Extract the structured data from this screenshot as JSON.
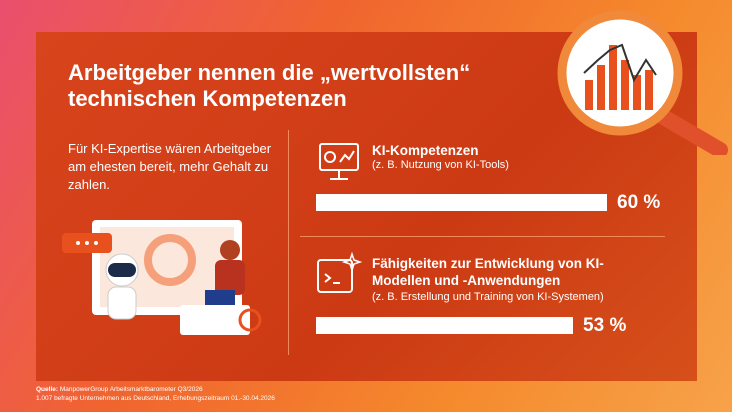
{
  "title": "Arbeitgeber nennen die „wertvollsten“ technischen Kompetenzen",
  "intro": "Für KI-Expertise wären Arbeitgeber am ehesten bereit, mehr Gehalt zu zahlen.",
  "items": [
    {
      "title": "KI-Kompetenzen",
      "subtitle": "(z. B. Nutzung von KI-Tools)",
      "value": 60,
      "value_label": "60 %"
    },
    {
      "title": "Fähigkeiten zur Entwicklung von KI-Modellen und -Anwendungen",
      "subtitle": "(z. B. Erstellung und Training von KI-Systemen)",
      "value": 53,
      "value_label": "53 %"
    }
  ],
  "source_label": "Quelle:",
  "source": "ManpowerGroup Arbeitsmarktbarometer Q3/2026",
  "note": "1.007 befragte Unternehmen aus Deutschland, Erhebungszeitraum 01.-30.04.2026"
}
